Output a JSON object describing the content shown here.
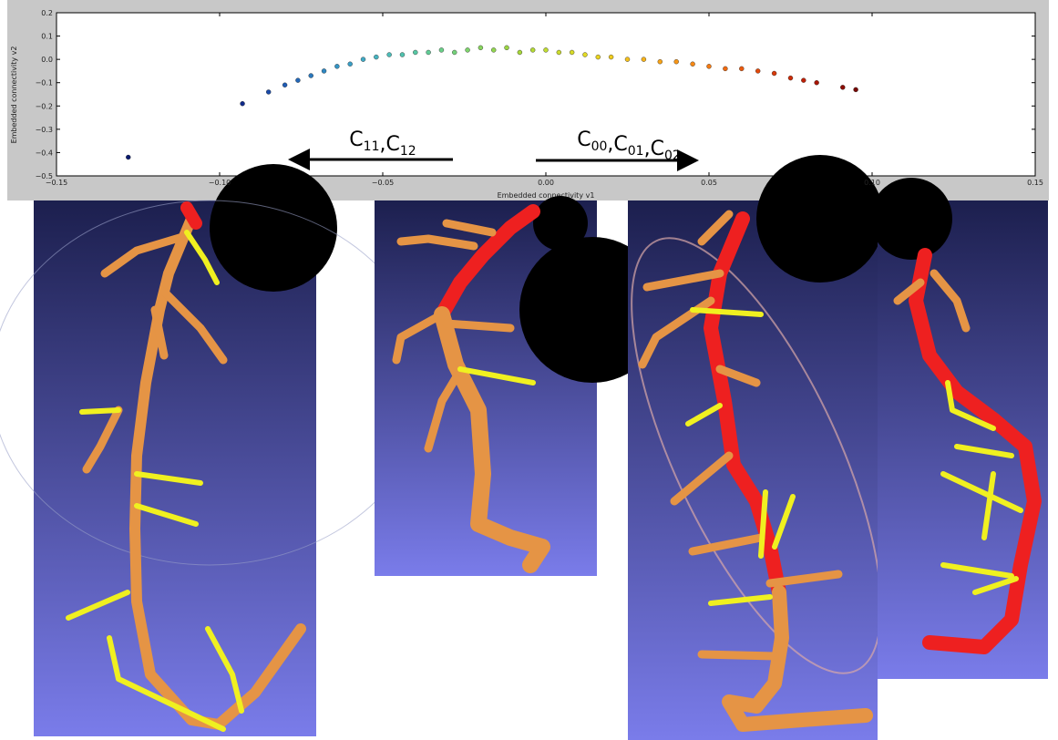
{
  "chart_data": {
    "type": "scatter",
    "xlabel": "Embedded connectivity v1",
    "ylabel": "Embedded connectivity v2",
    "xlim": [
      -0.15,
      0.15
    ],
    "ylim": [
      -0.5,
      0.2
    ],
    "xticks": [
      {
        "value": -0.15,
        "label": "−0.15"
      },
      {
        "value": -0.1,
        "label": "−0.10"
      },
      {
        "value": -0.05,
        "label": "−0.05"
      },
      {
        "value": 0,
        "label": "0.00"
      },
      {
        "value": 0.05,
        "label": "0.05"
      },
      {
        "value": 0.1,
        "label": "0.10"
      },
      {
        "value": 0.15,
        "label": "0.15"
      }
    ],
    "yticks": [
      0.2,
      0.1,
      {
        "value": 0,
        "label": "0.0"
      },
      {
        "value": -0.1,
        "label": "−0.1"
      },
      {
        "value": -0.2,
        "label": "−0.2"
      },
      {
        "value": -0.3,
        "label": "−0.3"
      },
      {
        "value": -0.4,
        "label": "−0.4"
      },
      {
        "value": -0.5,
        "label": "−0.5"
      }
    ],
    "x": [
      -0.128,
      -0.093,
      -0.085,
      -0.08,
      -0.076,
      -0.072,
      -0.068,
      -0.064,
      -0.06,
      -0.056,
      -0.052,
      -0.048,
      -0.044,
      -0.04,
      -0.036,
      -0.032,
      -0.028,
      -0.024,
      -0.02,
      -0.016,
      -0.012,
      -0.008,
      -0.004,
      0.0,
      0.004,
      0.008,
      0.012,
      0.016,
      0.02,
      0.025,
      0.03,
      0.035,
      0.04,
      0.045,
      0.05,
      0.055,
      0.06,
      0.065,
      0.07,
      0.075,
      0.079,
      0.083,
      0.091,
      0.095
    ],
    "y": [
      -0.42,
      -0.19,
      -0.14,
      -0.11,
      -0.09,
      -0.07,
      -0.05,
      -0.03,
      -0.02,
      0.0,
      0.01,
      0.02,
      0.02,
      0.03,
      0.03,
      0.04,
      0.03,
      0.04,
      0.05,
      0.04,
      0.05,
      0.03,
      0.04,
      0.04,
      0.03,
      0.03,
      0.02,
      0.01,
      0.01,
      0.0,
      0.0,
      -0.01,
      -0.01,
      -0.02,
      -0.03,
      -0.04,
      -0.04,
      -0.05,
      -0.06,
      -0.08,
      -0.09,
      -0.1,
      -0.12,
      -0.13
    ],
    "colors": [
      "#0a1a6e",
      "#102a8a",
      "#1a4aa8",
      "#1f5cb5",
      "#2368b8",
      "#2a78bd",
      "#2f88c2",
      "#3494c4",
      "#3a9fc6",
      "#40a9c4",
      "#46b3c0",
      "#4cbcb8",
      "#50c2ae",
      "#56c8a4",
      "#60cc96",
      "#6ad088",
      "#74d27a",
      "#7ed46c",
      "#88d55e",
      "#92d650",
      "#9cd644",
      "#a8d83a",
      "#b4da34",
      "#c0dc30",
      "#ccdc2c",
      "#d8dc28",
      "#e2da24",
      "#ead420",
      "#f0cc1e",
      "#f4c01c",
      "#f6b21a",
      "#f8a418",
      "#f89616",
      "#f68814",
      "#f47a12",
      "#f06a10",
      "#ea5a0e",
      "#e24a0c",
      "#d83a0a",
      "#cc2c08",
      "#be2006",
      "#a81404",
      "#8c0c04",
      "#760804"
    ],
    "annotations": [
      {
        "parts": [
          {
            "base": "C",
            "sub": "11"
          },
          {
            "base": "C",
            "sub": "12"
          }
        ],
        "separator": ","
      },
      {
        "parts": [
          {
            "base": "C",
            "sub": "00"
          },
          {
            "base": "C",
            "sub": "01"
          },
          {
            "base": "C",
            "sub": "02"
          }
        ],
        "separator": ","
      }
    ]
  }
}
